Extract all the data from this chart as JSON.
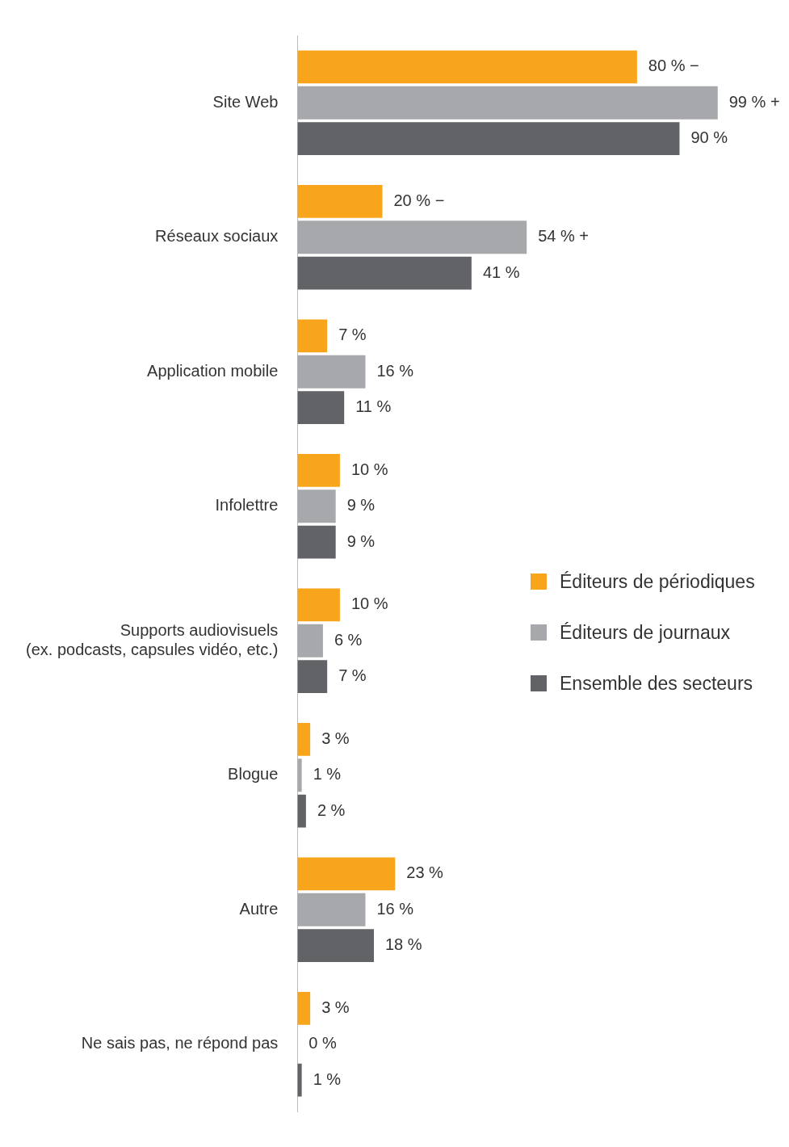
{
  "chart_data": {
    "type": "bar",
    "orientation": "horizontal",
    "categories": [
      "Site Web",
      "Réseaux sociaux",
      "Application mobile",
      "Infolettre",
      "Supports audiovisuels\n(ex. podcasts, capsules vidéo, etc.)",
      "Blogue",
      "Autre",
      "Ne sais pas, ne répond pas"
    ],
    "series": [
      {
        "name": "Éditeurs de périodiques",
        "color": "#f9a51b",
        "values": [
          80,
          20,
          7,
          10,
          10,
          3,
          23,
          3
        ],
        "value_labels": [
          "80 % −",
          "20 % −",
          "7 %",
          "10 %",
          "10 %",
          "3 %",
          "23 %",
          "3 %"
        ]
      },
      {
        "name": "Éditeurs de journaux",
        "color": "#a7a8ab",
        "values": [
          99,
          54,
          16,
          9,
          6,
          1,
          16,
          0
        ],
        "value_labels": [
          "99 % +",
          "54 % +",
          "16 %",
          "9 %",
          "6 %",
          "1 %",
          "16 %",
          "0 %"
        ]
      },
      {
        "name": "Ensemble des secteurs",
        "color": "#626366",
        "values": [
          90,
          41,
          11,
          9,
          7,
          2,
          18,
          1
        ],
        "value_labels": [
          "90 %",
          "41 %",
          "11 %",
          "9 %",
          "7 %",
          "2 %",
          "18 %",
          "1 %"
        ]
      }
    ],
    "legend": "right",
    "grid": false,
    "tick_labels": "y"
  }
}
